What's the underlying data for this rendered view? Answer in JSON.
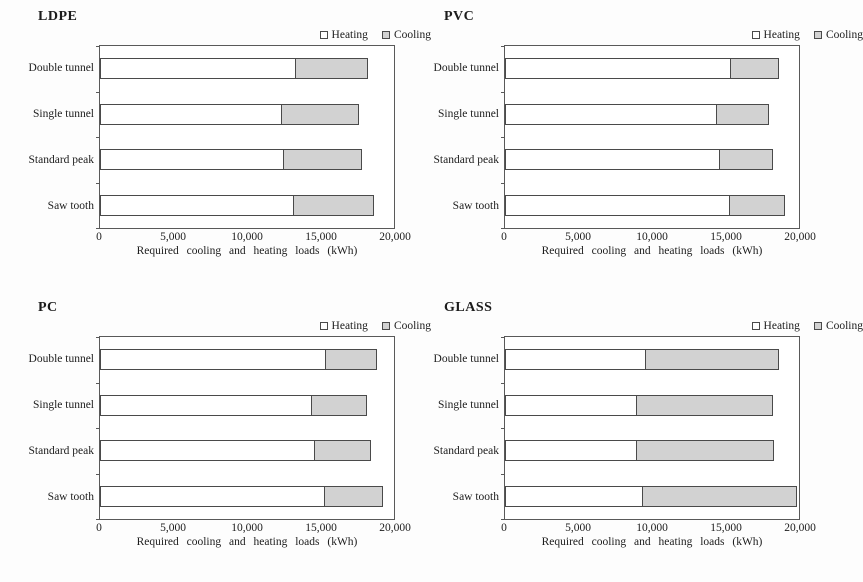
{
  "colors": {
    "heating_fill": "#ffffff",
    "cooling_fill": "#d2d2d2",
    "bar_border": "#4a4a4a",
    "plot_border": "#595959",
    "text": "#1c1c1c"
  },
  "legend": {
    "heating_label": "Heating",
    "cooling_label": "Cooling",
    "position": "top-right"
  },
  "axis": {
    "tick_labels": [
      "0",
      "5,000",
      "10,000",
      "15,000",
      "20,000"
    ],
    "xlabel": "Required cooling and heating loads (kWh)"
  },
  "chart_data": [
    {
      "type": "bar",
      "orientation": "horizontal",
      "stacked": true,
      "title": "LDPE",
      "categories": [
        "Double tunnel",
        "Single tunnel",
        "Standard peak",
        "Saw tooth"
      ],
      "series": [
        {
          "name": "Heating",
          "values": [
            13300,
            12400,
            12500,
            13200
          ]
        },
        {
          "name": "Cooling",
          "values": [
            5000,
            5300,
            5400,
            5500
          ]
        }
      ],
      "xlim": [
        0,
        20000
      ],
      "xtick_labels": [
        "0",
        "5,000",
        "10,000",
        "15,000",
        "20,000"
      ],
      "xlabel": "Required cooling and heating loads (kWh)",
      "legend_position": "top-right",
      "grid": false
    },
    {
      "type": "bar",
      "orientation": "horizontal",
      "stacked": true,
      "title": "PVC",
      "categories": [
        "Double tunnel",
        "Single tunnel",
        "Standard peak",
        "Saw tooth"
      ],
      "series": [
        {
          "name": "Heating",
          "values": [
            15400,
            14400,
            14600,
            15300
          ]
        },
        {
          "name": "Cooling",
          "values": [
            3300,
            3600,
            3700,
            3800
          ]
        }
      ],
      "xlim": [
        0,
        20000
      ],
      "xtick_labels": [
        "0",
        "5,000",
        "10,000",
        "15,000",
        "20,000"
      ],
      "xlabel": "Required cooling and heating loads (kWh)",
      "legend_position": "top-right",
      "grid": false
    },
    {
      "type": "bar",
      "orientation": "horizontal",
      "stacked": true,
      "title": "PC",
      "categories": [
        "Double tunnel",
        "Single tunnel",
        "Standard peak",
        "Saw tooth"
      ],
      "series": [
        {
          "name": "Heating",
          "values": [
            15400,
            14400,
            14600,
            15300
          ]
        },
        {
          "name": "Cooling",
          "values": [
            3500,
            3800,
            3900,
            4000
          ]
        }
      ],
      "xlim": [
        0,
        20000
      ],
      "xtick_labels": [
        "0",
        "5,000",
        "10,000",
        "15,000",
        "20,000"
      ],
      "xlabel": "Required cooling and heating loads (kWh)",
      "legend_position": "top-right",
      "grid": false
    },
    {
      "type": "bar",
      "orientation": "horizontal",
      "stacked": true,
      "title": "GLASS",
      "categories": [
        "Double tunnel",
        "Single tunnel",
        "Standard peak",
        "Saw tooth"
      ],
      "series": [
        {
          "name": "Heating",
          "values": [
            9600,
            9000,
            9000,
            9400
          ]
        },
        {
          "name": "Cooling",
          "values": [
            9100,
            9300,
            9400,
            10500
          ]
        }
      ],
      "xlim": [
        0,
        20000
      ],
      "xtick_labels": [
        "0",
        "5,000",
        "10,000",
        "15,000",
        "20,000"
      ],
      "xlabel": "Required cooling and heating loads (kWh)",
      "legend_position": "top-right",
      "grid": false
    }
  ]
}
